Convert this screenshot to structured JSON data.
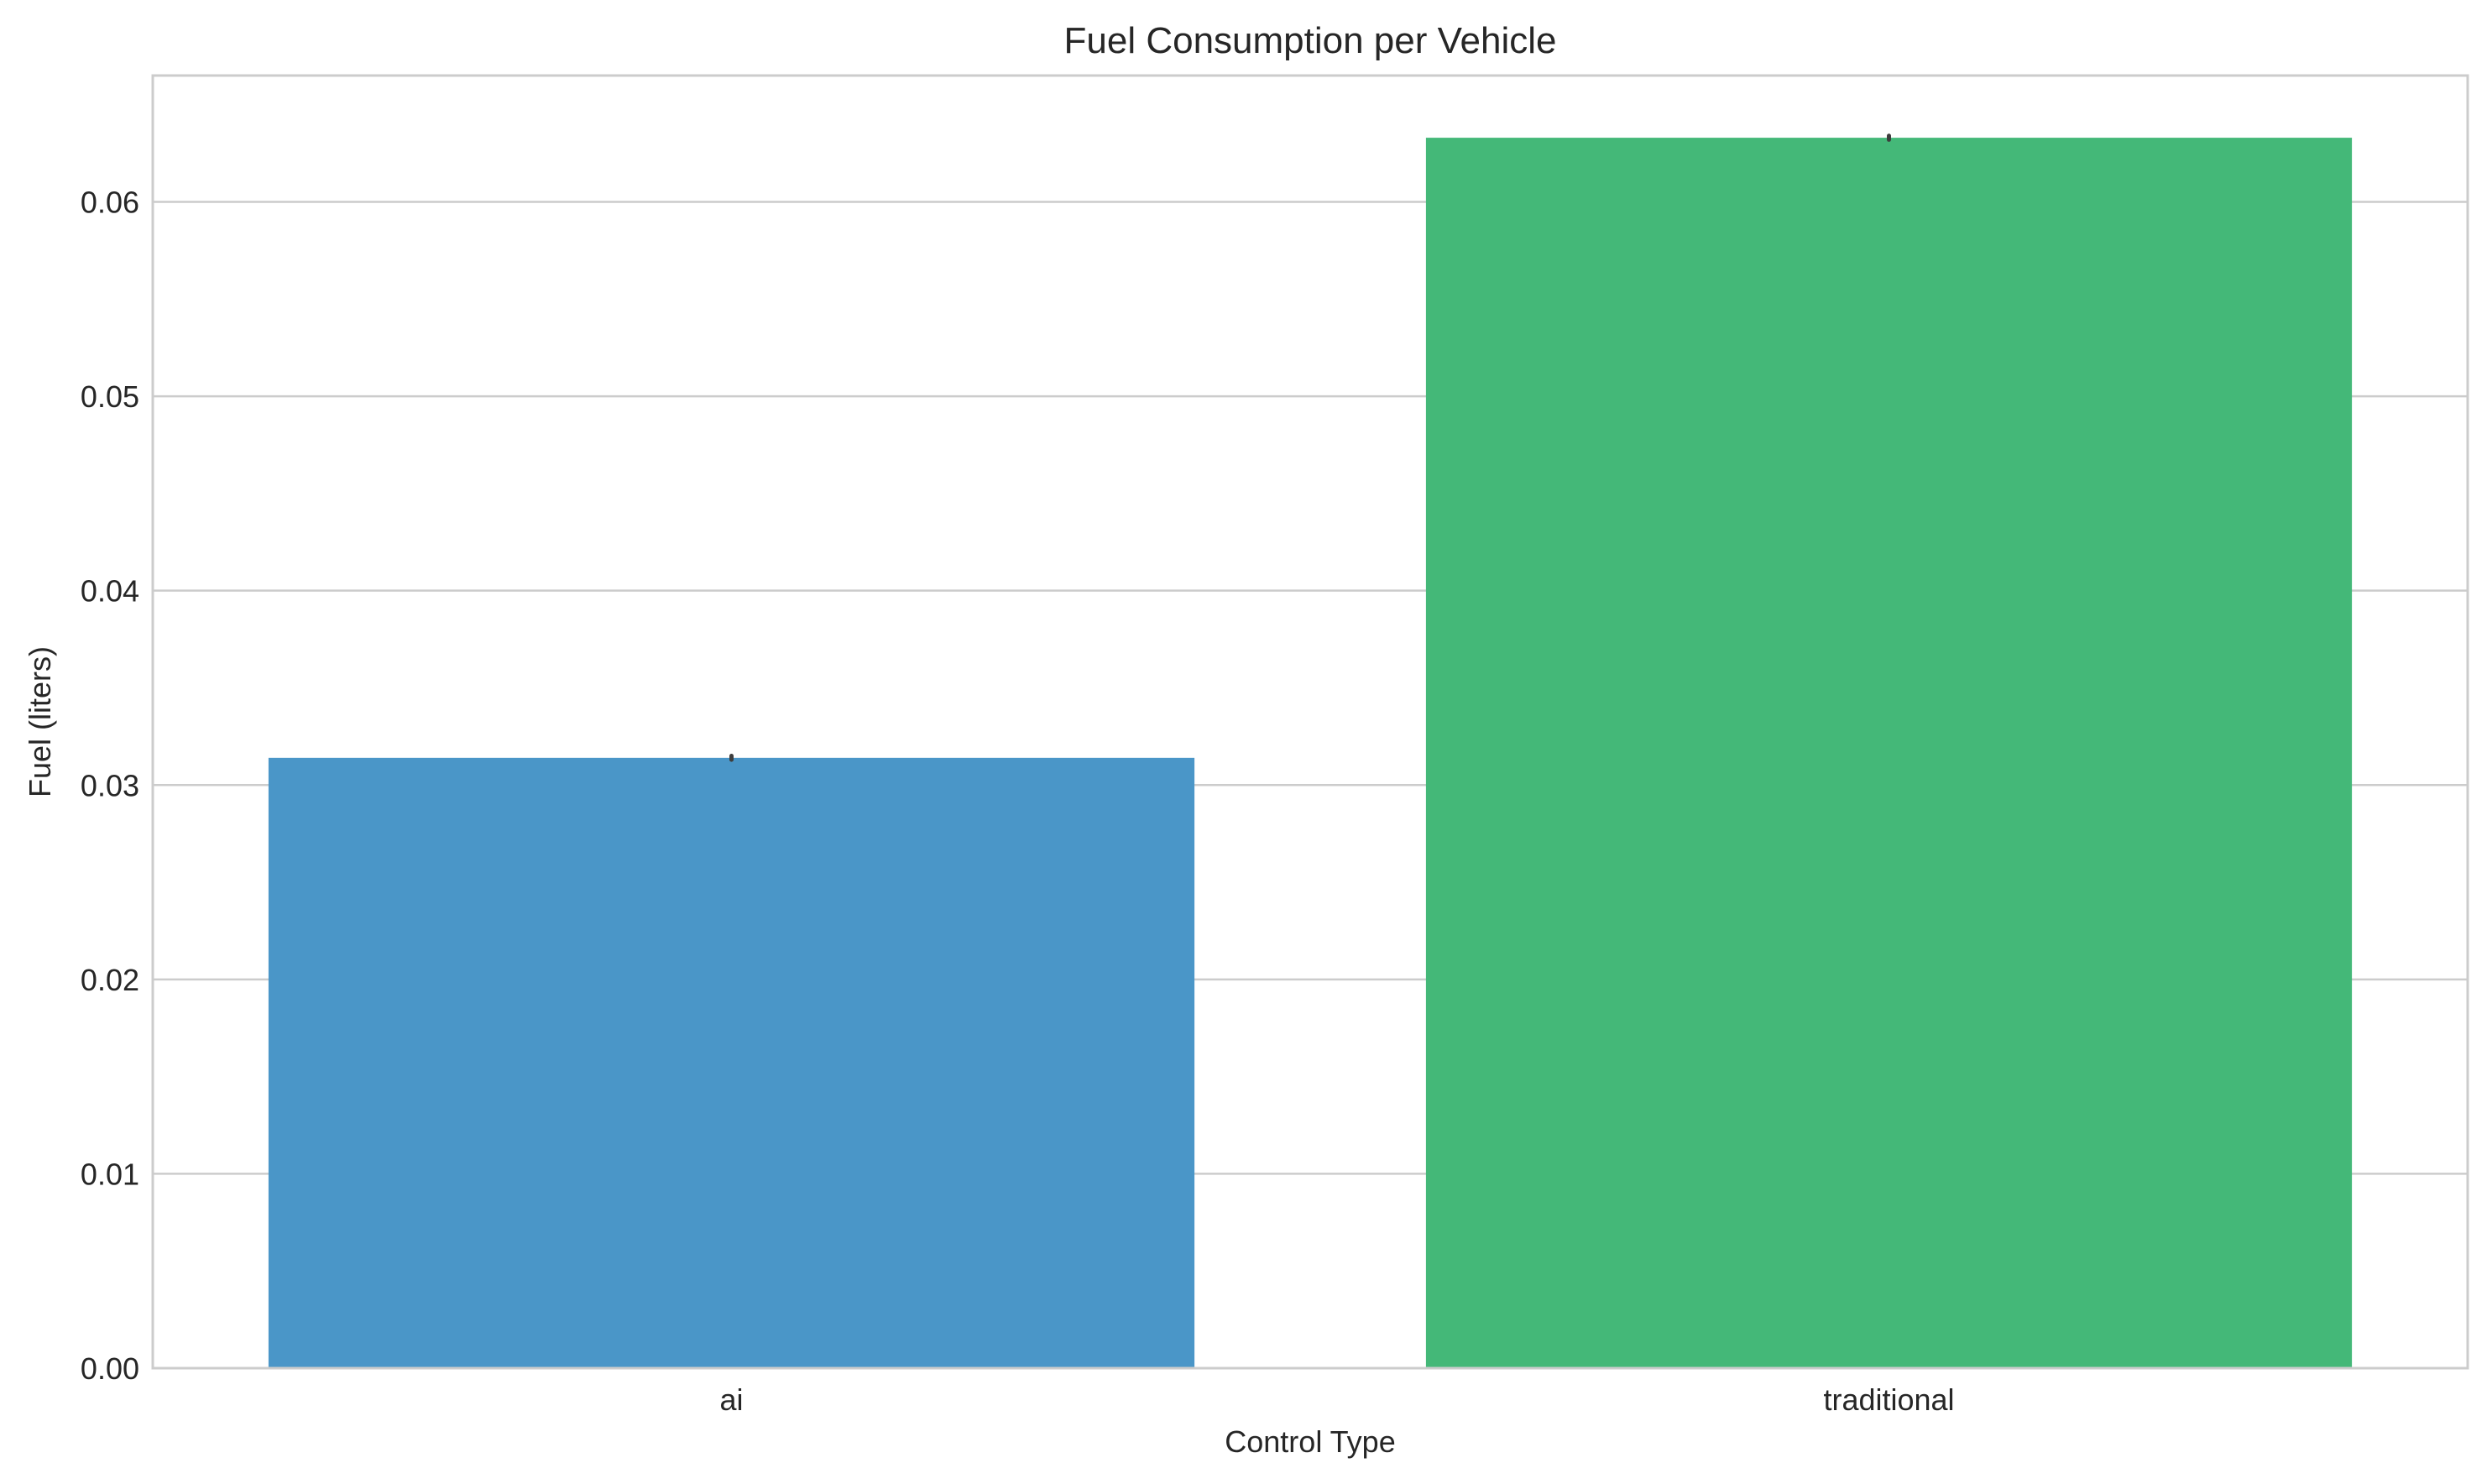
{
  "chart_data": {
    "type": "bar",
    "title": "Fuel Consumption per Vehicle",
    "xlabel": "Control Type",
    "ylabel": "Fuel (liters)",
    "categories": [
      "ai",
      "traditional"
    ],
    "values": [
      0.0314,
      0.0633
    ],
    "error_bars": [
      [
        0.0313,
        0.0315
      ],
      [
        0.0632,
        0.0634
      ]
    ],
    "colors": [
      "#4a96c8",
      "#44b878"
    ],
    "ylim": [
      0,
      0.0665
    ],
    "yticks": [
      "0.00",
      "0.01",
      "0.02",
      "0.03",
      "0.04",
      "0.05",
      "0.06"
    ],
    "grid": "horizontal",
    "legend": "none"
  }
}
